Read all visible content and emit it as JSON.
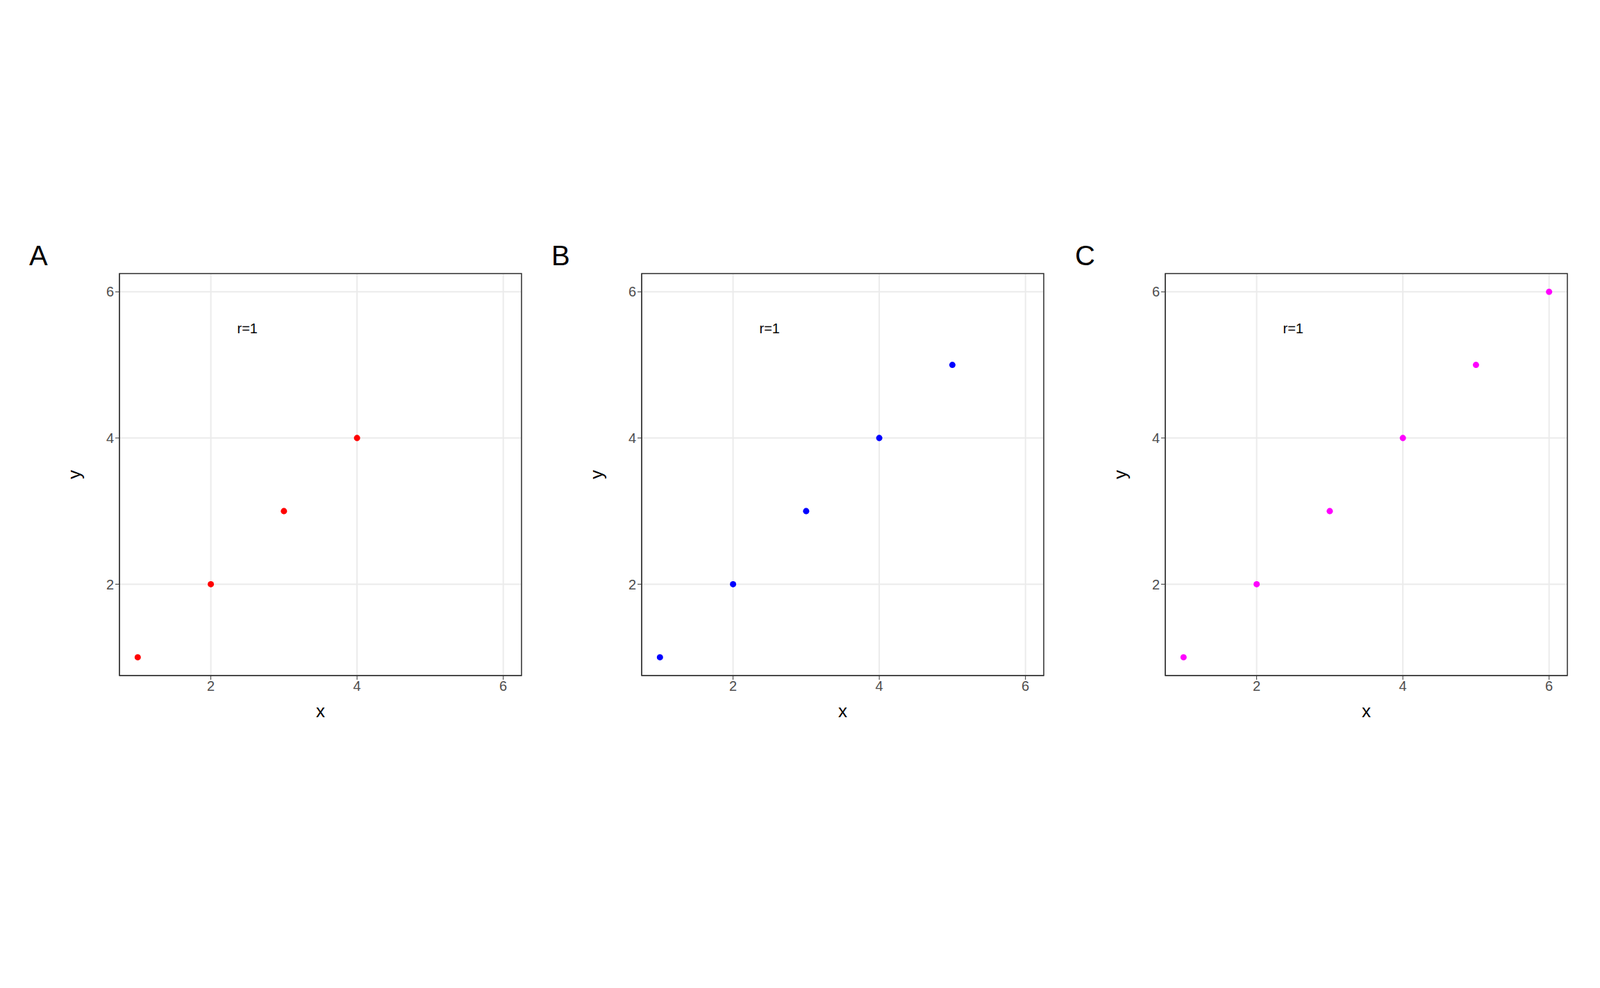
{
  "chart_data": [
    {
      "type": "scatter",
      "title": "A",
      "x_label": "x",
      "y_label": "y",
      "x": [
        1,
        2,
        3,
        4
      ],
      "values": [
        1,
        2,
        3,
        4
      ],
      "color": "#ff0000",
      "marker": "circle",
      "xlim": [
        0.75,
        6.25
      ],
      "ylim": [
        0.75,
        6.25
      ],
      "xticks": [
        2,
        4,
        6
      ],
      "yticks": [
        2,
        4,
        6
      ],
      "grid": true,
      "annotations": [
        {
          "text": "r=1",
          "x": 2.5,
          "y": 5.5
        }
      ]
    },
    {
      "type": "scatter",
      "title": "B",
      "x_label": "x",
      "y_label": "y",
      "x": [
        1,
        2,
        3,
        4,
        5
      ],
      "values": [
        1,
        2,
        3,
        4,
        5
      ],
      "color": "#0000ff",
      "marker": "circle",
      "xlim": [
        0.75,
        6.25
      ],
      "ylim": [
        0.75,
        6.25
      ],
      "xticks": [
        2,
        4,
        6
      ],
      "yticks": [
        2,
        4,
        6
      ],
      "grid": true,
      "annotations": [
        {
          "text": "r=1",
          "x": 2.5,
          "y": 5.5
        }
      ]
    },
    {
      "type": "scatter",
      "title": "C",
      "x_label": "x",
      "y_label": "y",
      "x": [
        1,
        2,
        3,
        4,
        5,
        6
      ],
      "values": [
        1,
        2,
        3,
        4,
        5,
        6
      ],
      "color": "#ff00ff",
      "marker": "circle",
      "xlim": [
        0.75,
        6.25
      ],
      "ylim": [
        0.75,
        6.25
      ],
      "xticks": [
        2,
        4,
        6
      ],
      "yticks": [
        2,
        4,
        6
      ],
      "grid": true,
      "annotations": [
        {
          "text": "r=1",
          "x": 2.5,
          "y": 5.5
        }
      ]
    }
  ]
}
